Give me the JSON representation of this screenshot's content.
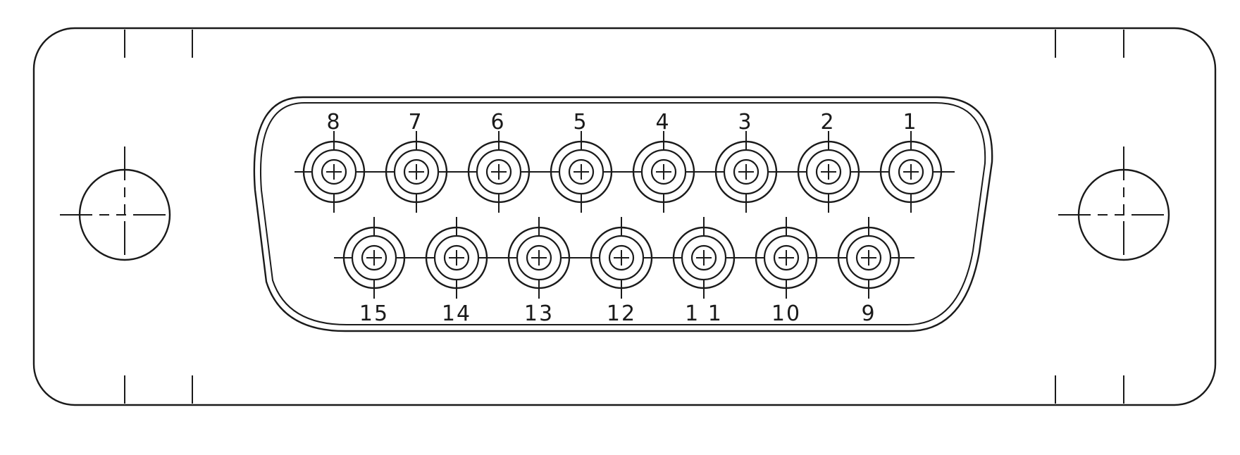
{
  "diagram": {
    "line_color": "#1a1a1a",
    "background_color": "#ffffff",
    "connector_pin_count": 15,
    "top_row_pins": [
      "8",
      "7",
      "6",
      "5",
      "4",
      "3",
      "2",
      "1"
    ],
    "bottom_row_pins": [
      "15",
      "14",
      "13",
      "12",
      "1 1",
      "10",
      "9"
    ],
    "mounting_holes": 2
  }
}
